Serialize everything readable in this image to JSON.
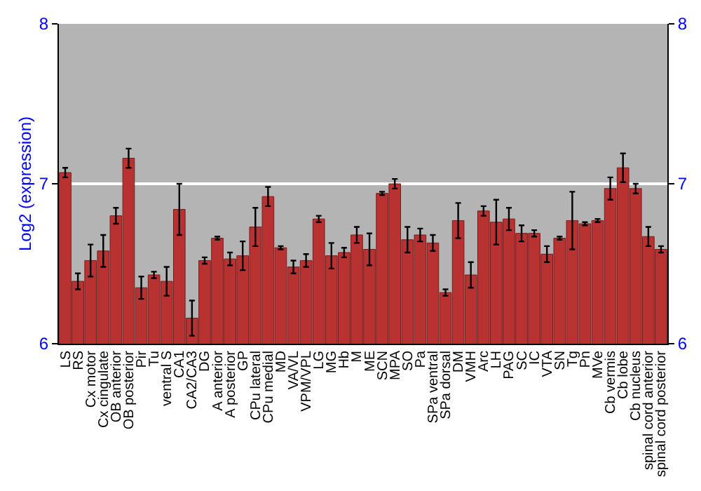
{
  "chart_data": {
    "type": "bar",
    "ylabel": "Log2 (expression)",
    "categories": [
      "LS",
      "RS",
      "Cx motor",
      "Cx cingulate",
      "OB anterior",
      "OB posterior",
      "Pir",
      "Tu",
      "ventral S",
      "CA1",
      "CA2/CA3",
      "DG",
      "A anterior",
      "A posterior",
      "GP",
      "CPu lateral",
      "CPu medial",
      "MD",
      "VA/VL",
      "VPM/VPL",
      "LG",
      "MG",
      "Hb",
      "M",
      "ME",
      "SCN",
      "MPA",
      "SO",
      "Pa",
      "SPa ventral",
      "SPa dorsal",
      "DM",
      "VMH",
      "Arc",
      "LH",
      "PAG",
      "SC",
      "IC",
      "VTA",
      "SN",
      "Tg",
      "Pn",
      "MVe",
      "Cb vermis",
      "Cb lobe",
      "Cb nucleus",
      "spinal cord anterior",
      "spinal cord posterior"
    ],
    "series": [
      {
        "color": "#b83232",
        "values": [
          7.07,
          6.39,
          6.52,
          6.58,
          6.8,
          7.16,
          6.35,
          6.43,
          6.39,
          6.84,
          6.16,
          6.52,
          6.66,
          6.53,
          6.55,
          6.73,
          6.92,
          6.6,
          6.48,
          6.52,
          6.78,
          6.55,
          6.57,
          6.68,
          6.59,
          6.94,
          7.0,
          6.65,
          6.68,
          6.63,
          6.32,
          6.77,
          6.43,
          6.83,
          6.76,
          6.78,
          6.69,
          6.69,
          6.56,
          6.66,
          6.77,
          6.75,
          6.77,
          6.97,
          7.1,
          6.97,
          6.67,
          6.59
        ],
        "errors": [
          0.03,
          0.05,
          0.1,
          0.1,
          0.05,
          0.06,
          0.07,
          0.02,
          0.09,
          0.16,
          0.11,
          0.02,
          0.01,
          0.04,
          0.09,
          0.12,
          0.06,
          0.01,
          0.04,
          0.04,
          0.02,
          0.08,
          0.03,
          0.05,
          0.1,
          0.01,
          0.03,
          0.08,
          0.04,
          0.05,
          0.02,
          0.11,
          0.08,
          0.03,
          0.14,
          0.07,
          0.05,
          0.02,
          0.05,
          0.01,
          0.18,
          0.01,
          0.01,
          0.07,
          0.09,
          0.03,
          0.06,
          0.02
        ]
      }
    ],
    "ylim": [
      6,
      8
    ],
    "yticks": [
      6,
      7,
      8
    ],
    "y2lim": [
      6,
      8
    ],
    "y2ticks": [
      6,
      7,
      8
    ],
    "grid": "y",
    "legend": false
  }
}
